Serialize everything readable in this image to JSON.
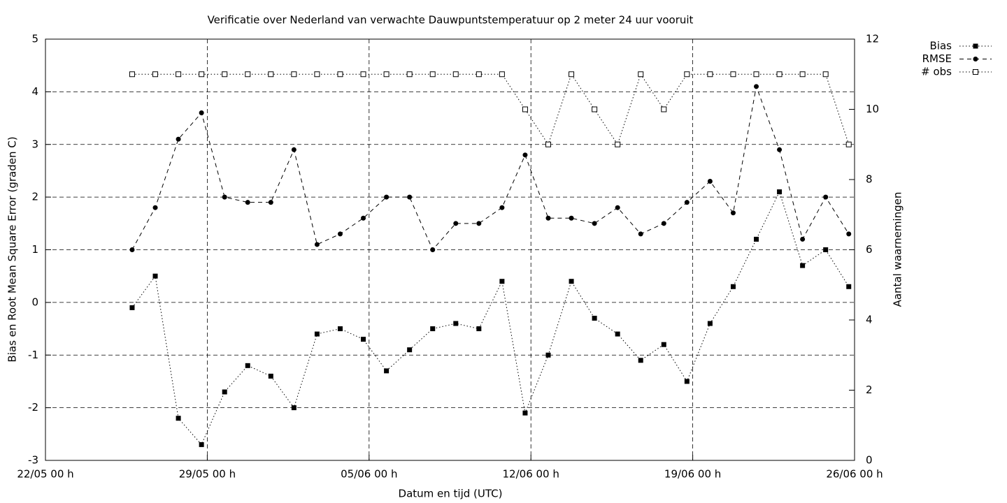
{
  "chart_data": {
    "type": "line",
    "title": "Verificatie over Nederland van verwachte Dauwpuntstemperatuur op 2 meter 24 uur vooruit",
    "xlabel": "Datum en tijd (UTC)",
    "ylabel": "Bias en Root Mean Square Error (graden C)",
    "y2label": "Aantal waarnemingen",
    "x": [
      "25/05 18 h",
      "26/05 18 h",
      "27/05 18 h",
      "28/05 18 h",
      "29/05 18 h",
      "30/05 18 h",
      "31/05 18 h",
      "01/06 18 h",
      "02/06 18 h",
      "03/06 18 h",
      "04/06 18 h",
      "05/06 18 h",
      "06/06 18 h",
      "07/06 18 h",
      "08/06 18 h",
      "09/06 18 h",
      "10/06 18 h",
      "11/06 18 h",
      "12/06 18 h",
      "13/06 18 h",
      "14/06 18 h",
      "15/06 18 h",
      "16/06 18 h",
      "17/06 18 h",
      "18/06 18 h",
      "19/06 18 h",
      "20/06 18 h",
      "21/06 18 h",
      "22/06 18 h",
      "23/06 18 h",
      "24/06 18 h",
      "25/06 18 h"
    ],
    "xlim": [
      "22/05 00 h",
      "26/06 00 h"
    ],
    "xticks": [
      "22/05 00 h",
      "29/05 00 h",
      "05/06 00 h",
      "12/06 00 h",
      "19/06 00 h",
      "26/06 00 h"
    ],
    "ylim": [
      -3,
      5
    ],
    "yticks": [
      -3,
      -2,
      -1,
      0,
      1,
      2,
      3,
      4,
      5
    ],
    "y2lim": [
      0,
      12
    ],
    "y2ticks": [
      0,
      2,
      4,
      6,
      8,
      10,
      12
    ],
    "grid": true,
    "legend": "outside-top-right",
    "series": [
      {
        "name": "Bias",
        "color": "#000000",
        "line": "dotted",
        "marker": "filled-square",
        "values": [
          -0.1,
          0.5,
          -2.2,
          -2.7,
          -1.7,
          -1.2,
          -1.4,
          -2.0,
          -0.6,
          -0.5,
          -0.7,
          -1.3,
          -0.9,
          -0.5,
          -0.4,
          -0.5,
          0.4,
          -2.1,
          -1.0,
          0.4,
          -0.3,
          -0.6,
          -1.1,
          -0.8,
          -1.5,
          -0.4,
          0.3,
          1.2,
          2.1,
          0.7,
          1.0,
          0.3
        ]
      },
      {
        "name": "RMSE",
        "color": "#000000",
        "line": "dashed",
        "marker": "filled-circle",
        "values": [
          1.0,
          1.8,
          3.1,
          3.6,
          2.0,
          1.9,
          1.9,
          2.9,
          1.1,
          1.3,
          1.6,
          2.0,
          2.0,
          1.0,
          1.5,
          1.5,
          1.8,
          2.8,
          1.6,
          1.6,
          1.5,
          1.8,
          1.3,
          1.5,
          1.9,
          2.3,
          1.7,
          4.1,
          2.9,
          1.2,
          2.0,
          1.3
        ]
      },
      {
        "name": "# obs",
        "color": "#000000",
        "line": "dotted",
        "marker": "open-square",
        "axis": "y2",
        "values": [
          11,
          11,
          11,
          11,
          11,
          11,
          11,
          11,
          11,
          11,
          11,
          11,
          11,
          11,
          11,
          11,
          11,
          10,
          9,
          11,
          10,
          9,
          11,
          10,
          11,
          11,
          11,
          11,
          11,
          11,
          11,
          9
        ]
      }
    ]
  }
}
